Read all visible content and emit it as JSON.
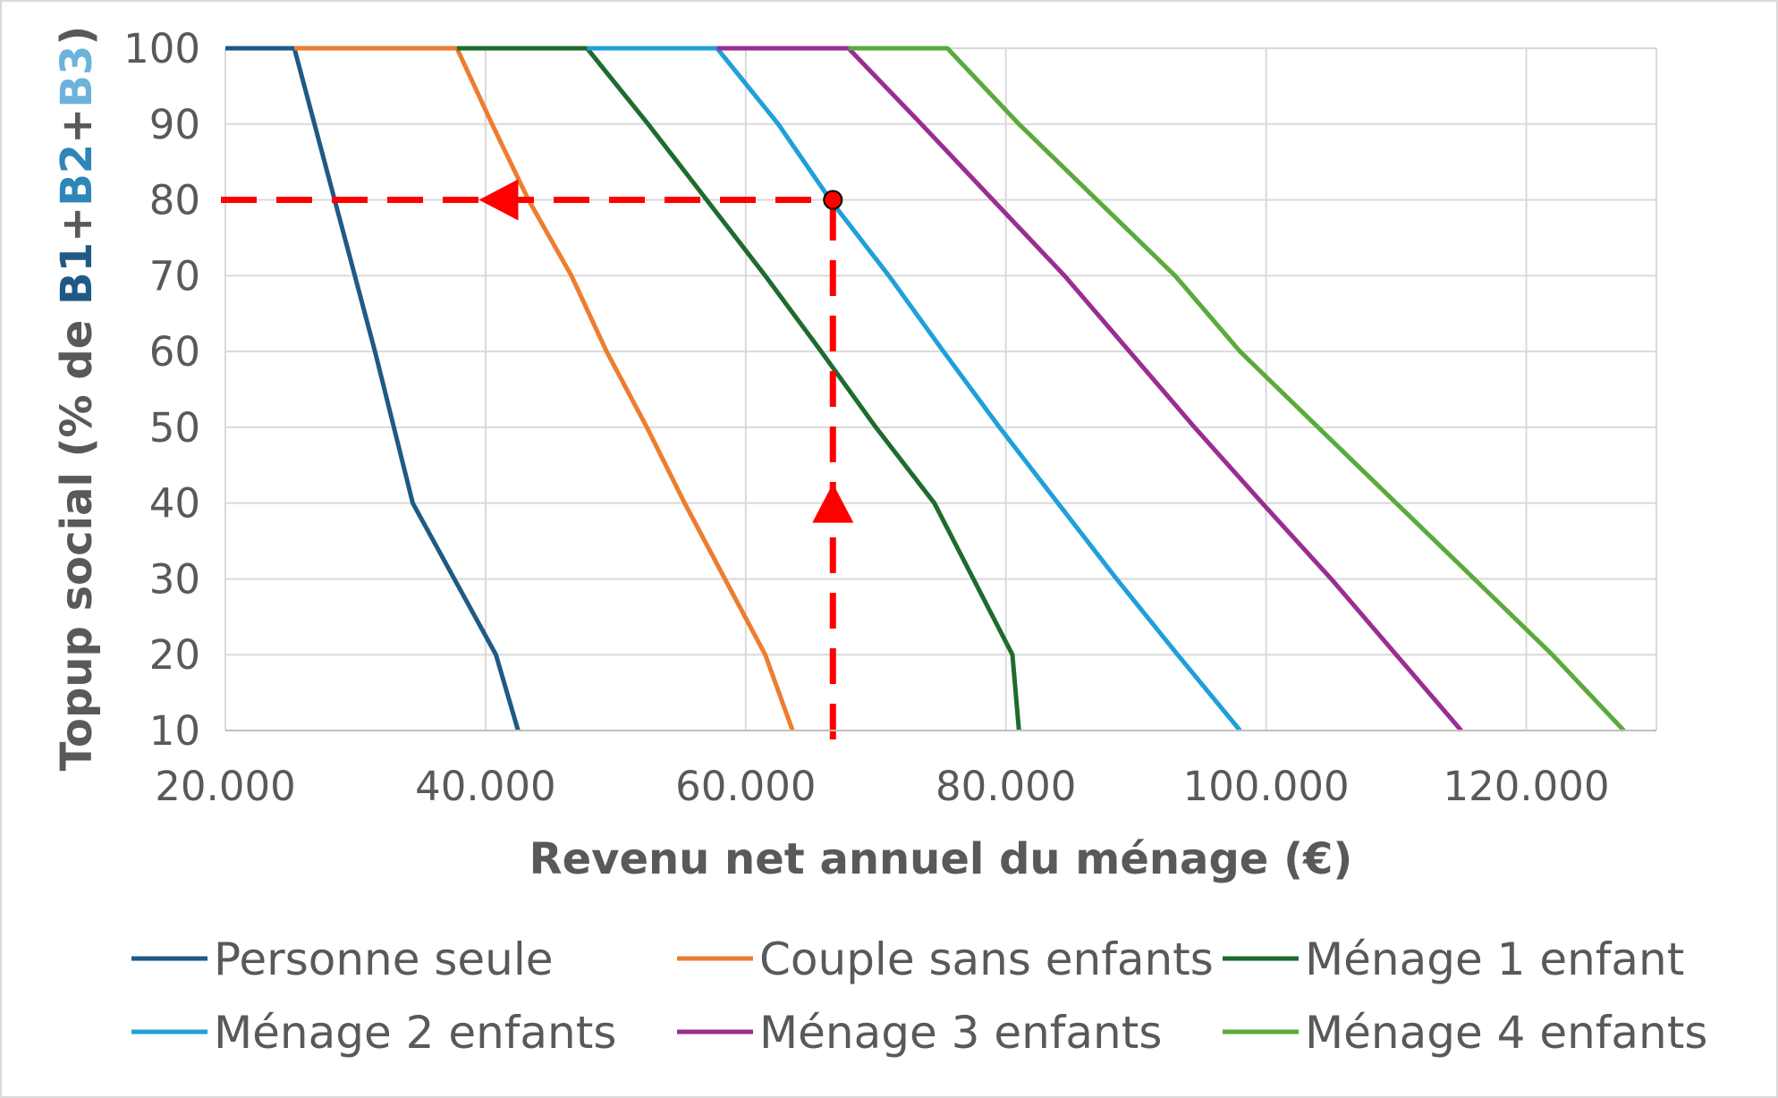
{
  "chart_data": {
    "type": "line",
    "xlabel": "Revenu net annuel du ménage (€)",
    "ylabel": {
      "prefix": "Topup social (% de ",
      "parts": [
        {
          "text": "B1",
          "color": "#1f5a85"
        },
        {
          "text": "+",
          "color": "#595959"
        },
        {
          "text": "B2",
          "color": "#2e86b8"
        },
        {
          "text": "+",
          "color": "#595959"
        },
        {
          "text": "B3",
          "color": "#6db3d9"
        }
      ],
      "suffix": ")"
    },
    "xlim": [
      20000,
      130000
    ],
    "ylim": [
      10,
      100
    ],
    "x_ticks": [
      {
        "value": 20000,
        "label": "20.000"
      },
      {
        "value": 40000,
        "label": "40.000"
      },
      {
        "value": 60000,
        "label": "60.000"
      },
      {
        "value": 80000,
        "label": "80.000"
      },
      {
        "value": 100000,
        "label": "100.000"
      },
      {
        "value": 120000,
        "label": "120.000"
      }
    ],
    "y_ticks": [
      {
        "value": 10,
        "label": "10"
      },
      {
        "value": 20,
        "label": "20"
      },
      {
        "value": 30,
        "label": "30"
      },
      {
        "value": 40,
        "label": "40"
      },
      {
        "value": 50,
        "label": "50"
      },
      {
        "value": 60,
        "label": "60"
      },
      {
        "value": 70,
        "label": "70"
      },
      {
        "value": 80,
        "label": "80"
      },
      {
        "value": 90,
        "label": "90"
      },
      {
        "value": 100,
        "label": "100"
      }
    ],
    "grid": true,
    "legend_position": "bottom",
    "series": [
      {
        "name": "Personne seule",
        "color": "#1f5a85",
        "points": [
          [
            20000,
            100
          ],
          [
            25300,
            100
          ],
          [
            28400,
            80
          ],
          [
            31500,
            60
          ],
          [
            34400,
            40
          ],
          [
            40800,
            20
          ],
          [
            42500,
            10
          ]
        ]
      },
      {
        "name": "Couple sans enfants",
        "color": "#ed7d31",
        "points": [
          [
            25300,
            100
          ],
          [
            37800,
            100
          ],
          [
            40500,
            90
          ],
          [
            43300,
            80
          ],
          [
            46600,
            70
          ],
          [
            49300,
            60
          ],
          [
            52400,
            50
          ],
          [
            55300,
            40
          ],
          [
            58400,
            30
          ],
          [
            61500,
            20
          ],
          [
            63600,
            10
          ]
        ]
      },
      {
        "name": "Ménage 1 enfant",
        "color": "#1e6b2e",
        "points": [
          [
            37800,
            100
          ],
          [
            47800,
            100
          ],
          [
            52500,
            90
          ],
          [
            57000,
            80
          ],
          [
            61500,
            70
          ],
          [
            65800,
            60
          ],
          [
            70000,
            50
          ],
          [
            74500,
            40
          ],
          [
            80500,
            20
          ],
          [
            81000,
            10
          ]
        ]
      },
      {
        "name": "Ménage 2 enfants",
        "color": "#1fa0d8",
        "points": [
          [
            47800,
            100
          ],
          [
            57800,
            100
          ],
          [
            62500,
            90
          ],
          [
            66500,
            80
          ],
          [
            71000,
            70
          ],
          [
            75200,
            60
          ],
          [
            79500,
            50
          ],
          [
            84000,
            40
          ],
          [
            88500,
            30
          ],
          [
            93200,
            20
          ],
          [
            98000,
            10
          ]
        ]
      },
      {
        "name": "Ménage 3 enfants",
        "color": "#9b2d91",
        "points": [
          [
            57800,
            100
          ],
          [
            67900,
            100
          ],
          [
            73500,
            90
          ],
          [
            79000,
            80
          ],
          [
            84500,
            70
          ],
          [
            89500,
            60
          ],
          [
            94500,
            50
          ],
          [
            99700,
            40
          ],
          [
            105000,
            30
          ],
          [
            110000,
            20
          ],
          [
            115000,
            10
          ]
        ]
      },
      {
        "name": "Ménage 4 enfants",
        "color": "#5aaa3c",
        "points": [
          [
            67900,
            100
          ],
          [
            75500,
            100
          ],
          [
            81000,
            90
          ],
          [
            87000,
            80
          ],
          [
            93000,
            70
          ],
          [
            98000,
            60
          ],
          [
            104000,
            50
          ],
          [
            110000,
            40
          ],
          [
            116000,
            30
          ],
          [
            122000,
            20
          ],
          [
            127500,
            10
          ]
        ]
      }
    ],
    "annotation": {
      "color": "#ff0000",
      "point": {
        "x": 66700,
        "y": 80
      },
      "vertical_from_y": 10,
      "horizontal_to_x": 20000,
      "arrow_up_at_y": 40,
      "arrow_left_at_x": 41000
    }
  }
}
